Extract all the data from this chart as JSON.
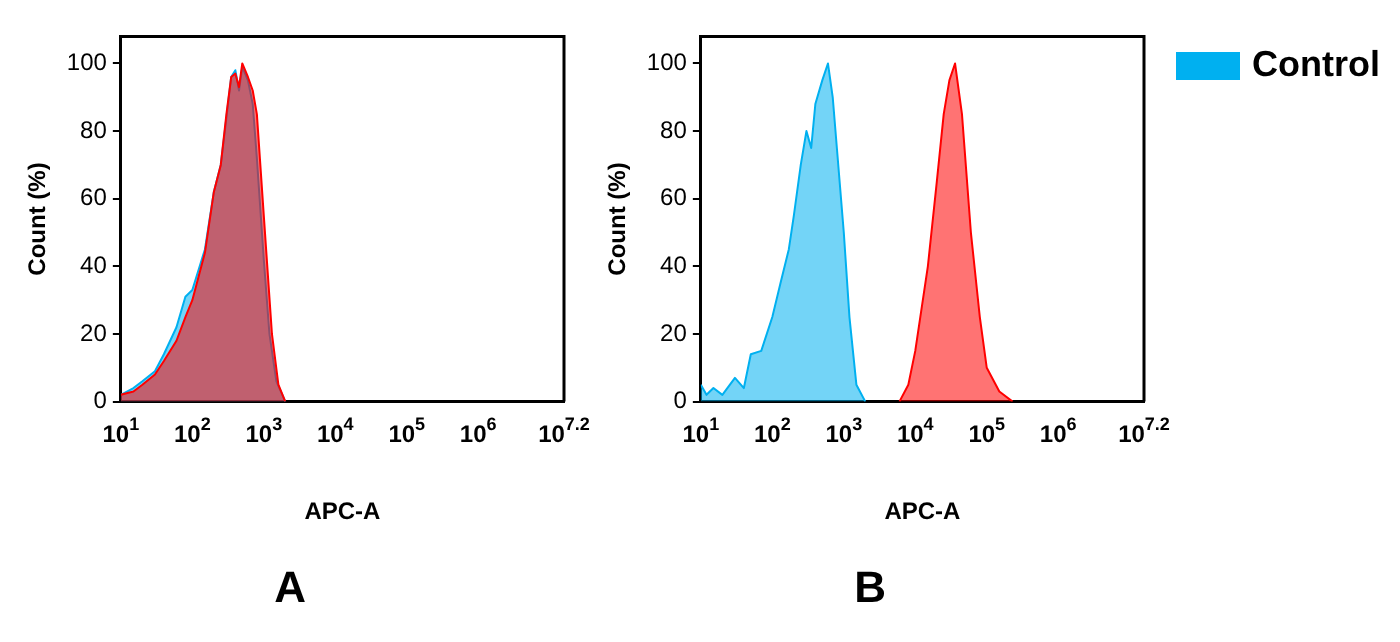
{
  "chart_data": [
    {
      "type": "area",
      "title": "A",
      "xlabel": "APC-A",
      "ylabel": "Count (%)",
      "log": "x",
      "xlim": [
        10,
        15848932
      ],
      "xticks": [
        {
          "value": 10,
          "label": "10$^{1}$"
        },
        {
          "value": 100,
          "label": "10$^{2}$"
        },
        {
          "value": 1000,
          "label": "10$^{3}$"
        },
        {
          "value": 10000,
          "label": "10$^{4}$"
        },
        {
          "value": 100000,
          "label": "10$^{5}$"
        },
        {
          "value": 1000000,
          "label": "10$^{6}$"
        },
        {
          "value": 15848932,
          "label": "10$^{7.2}$"
        }
      ],
      "ylim": [
        0,
        108
      ],
      "yticks": [
        0,
        20,
        40,
        60,
        80,
        100
      ],
      "grid": false,
      "legend": false,
      "series": [
        {
          "color": "#ff0000",
          "x": [
            10,
            15,
            20,
            30,
            40,
            60,
            80,
            100,
            150,
            200,
            250,
            300,
            350,
            400,
            450,
            500,
            600,
            700,
            800,
            1000,
            1300,
            1600,
            2000
          ],
          "values": [
            2,
            3,
            5,
            8,
            12,
            18,
            25,
            30,
            44,
            62,
            70,
            85,
            96,
            97,
            93,
            100,
            96,
            92,
            85,
            55,
            20,
            5,
            0
          ]
        },
        {
          "color": "#00b0f0",
          "x": [
            10,
            15,
            20,
            30,
            40,
            60,
            80,
            100,
            150,
            200,
            250,
            300,
            350,
            400,
            450,
            500,
            600,
            700,
            800,
            1000,
            1200,
            1500,
            2000
          ],
          "values": [
            2,
            4,
            6,
            9,
            14,
            22,
            31,
            33,
            45,
            62,
            70,
            84,
            96,
            98,
            92,
            99,
            95,
            88,
            72,
            42,
            20,
            6,
            0
          ]
        }
      ]
    },
    {
      "type": "area",
      "title": "B",
      "xlabel": "APC-A",
      "ylabel": "Count (%)",
      "log": "x",
      "xlim": [
        10,
        15848932
      ],
      "xticks": [
        {
          "value": 10,
          "label": "10$^{1}$"
        },
        {
          "value": 100,
          "label": "10$^{2}$"
        },
        {
          "value": 1000,
          "label": "10$^{3}$"
        },
        {
          "value": 10000,
          "label": "10$^{4}$"
        },
        {
          "value": 100000,
          "label": "10$^{5}$"
        },
        {
          "value": 1000000,
          "label": "10$^{6}$"
        },
        {
          "value": 15848932,
          "label": "10$^{7.2}$"
        }
      ],
      "ylim": [
        0,
        108
      ],
      "yticks": [
        0,
        20,
        40,
        60,
        80,
        100
      ],
      "grid": false,
      "legend": "right",
      "series": [
        {
          "name": "Control",
          "color": "#00b0f0",
          "x": [
            10,
            12,
            15,
            20,
            30,
            40,
            50,
            70,
            100,
            130,
            170,
            200,
            250,
            300,
            350,
            400,
            500,
            600,
            700,
            800,
            1000,
            1200,
            1500,
            2000
          ],
          "values": [
            5,
            2,
            4,
            2,
            7,
            4,
            14,
            15,
            25,
            35,
            45,
            55,
            70,
            80,
            75,
            88,
            95,
            100,
            90,
            75,
            50,
            25,
            5,
            0
          ]
        },
        {
          "color": "#ff0000",
          "x": [
            6000,
            8000,
            10000,
            15000,
            20000,
            25000,
            30000,
            36000,
            45000,
            60000,
            80000,
            100000,
            150000,
            230000
          ],
          "values": [
            0,
            5,
            15,
            40,
            65,
            85,
            95,
            100,
            85,
            50,
            25,
            10,
            3,
            0
          ]
        }
      ]
    }
  ]
}
